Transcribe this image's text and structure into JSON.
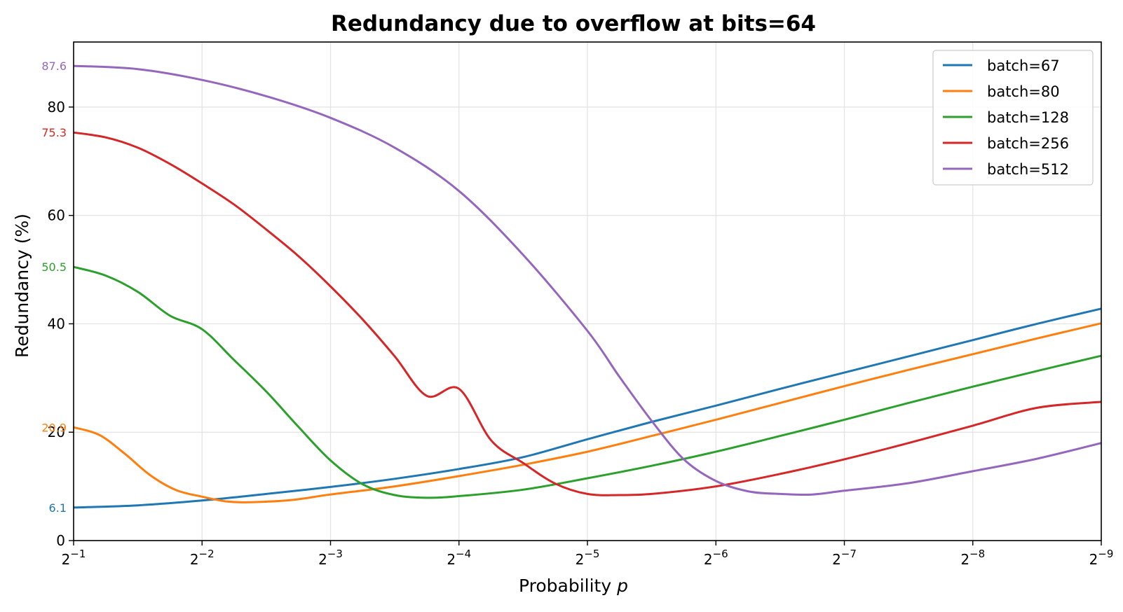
{
  "chart_data": {
    "type": "line",
    "title": "Redundancy due to overflow at bits=64",
    "xlabel": "Probability p",
    "xlabel_text": "Probability ",
    "xlabel_var": "p",
    "ylabel": "Redundancy (%)",
    "x_scale": "log2, reversed",
    "x_range_exponents": [
      -1,
      -9
    ],
    "x_ticks": [
      {
        "exp": -1,
        "label": "−1"
      },
      {
        "exp": -2,
        "label": "−2"
      },
      {
        "exp": -3,
        "label": "−3"
      },
      {
        "exp": -4,
        "label": "−4"
      },
      {
        "exp": -5,
        "label": "−5"
      },
      {
        "exp": -6,
        "label": "−6"
      },
      {
        "exp": -7,
        "label": "−7"
      },
      {
        "exp": -8,
        "label": "−8"
      },
      {
        "exp": -9,
        "label": "−9"
      }
    ],
    "x_tick_base": "2",
    "ylim": [
      0,
      92
    ],
    "y_ticks": [
      0,
      20,
      40,
      60,
      80
    ],
    "grid": true,
    "legend_position": "top-right",
    "series": [
      {
        "name": "batch=67",
        "color": "#1f77b4",
        "start_label": "6.1",
        "points": [
          [
            -1,
            6.1
          ],
          [
            -1.5,
            6.5
          ],
          [
            -2,
            7.4
          ],
          [
            -2.5,
            8.6
          ],
          [
            -3,
            9.9
          ],
          [
            -3.5,
            11.4
          ],
          [
            -4,
            13.2
          ],
          [
            -4.5,
            15.4
          ],
          [
            -5,
            18.7
          ],
          [
            -5.5,
            21.9
          ],
          [
            -6,
            24.9
          ],
          [
            -6.5,
            28.0
          ],
          [
            -7,
            31.0
          ],
          [
            -7.5,
            34.0
          ],
          [
            -8,
            37.0
          ],
          [
            -8.5,
            40.0
          ],
          [
            -9,
            42.8
          ]
        ]
      },
      {
        "name": "batch=80",
        "color": "#ff7f0e",
        "start_label": "20.9",
        "points": [
          [
            -1,
            20.9
          ],
          [
            -1.2,
            19.5
          ],
          [
            -1.4,
            16.0
          ],
          [
            -1.6,
            12.0
          ],
          [
            -1.8,
            9.3
          ],
          [
            -2,
            8.1
          ],
          [
            -2.2,
            7.2
          ],
          [
            -2.4,
            7.1
          ],
          [
            -2.7,
            7.5
          ],
          [
            -3,
            8.5
          ],
          [
            -3.5,
            10.0
          ],
          [
            -4,
            11.9
          ],
          [
            -4.5,
            14.0
          ],
          [
            -5,
            16.4
          ],
          [
            -5.5,
            19.3
          ],
          [
            -6,
            22.3
          ],
          [
            -6.5,
            25.4
          ],
          [
            -7,
            28.5
          ],
          [
            -7.5,
            31.5
          ],
          [
            -8,
            34.4
          ],
          [
            -8.5,
            37.3
          ],
          [
            -9,
            40.1
          ]
        ]
      },
      {
        "name": "batch=128",
        "color": "#2ca02c",
        "start_label": "50.5",
        "points": [
          [
            -1,
            50.5
          ],
          [
            -1.25,
            48.9
          ],
          [
            -1.5,
            45.9
          ],
          [
            -1.75,
            41.5
          ],
          [
            -2,
            39.0
          ],
          [
            -2.25,
            33.3
          ],
          [
            -2.5,
            27.5
          ],
          [
            -2.75,
            21.0
          ],
          [
            -3,
            14.8
          ],
          [
            -3.25,
            10.4
          ],
          [
            -3.5,
            8.4
          ],
          [
            -3.75,
            7.9
          ],
          [
            -4,
            8.2
          ],
          [
            -4.5,
            9.4
          ],
          [
            -5,
            11.5
          ],
          [
            -5.5,
            13.8
          ],
          [
            -6,
            16.4
          ],
          [
            -6.5,
            19.3
          ],
          [
            -7,
            22.3
          ],
          [
            -7.5,
            25.4
          ],
          [
            -8,
            28.4
          ],
          [
            -8.5,
            31.3
          ],
          [
            -9,
            34.1
          ]
        ]
      },
      {
        "name": "batch=256",
        "color": "#d62728",
        "start_label": "75.3",
        "points": [
          [
            -1,
            75.3
          ],
          [
            -1.25,
            74.4
          ],
          [
            -1.5,
            72.5
          ],
          [
            -1.75,
            69.5
          ],
          [
            -2,
            65.9
          ],
          [
            -2.25,
            62.0
          ],
          [
            -2.5,
            57.4
          ],
          [
            -2.75,
            52.5
          ],
          [
            -3,
            46.9
          ],
          [
            -3.25,
            40.8
          ],
          [
            -3.5,
            34.0
          ],
          [
            -3.75,
            26.7
          ],
          [
            -4,
            28.0
          ],
          [
            -4.25,
            18.5
          ],
          [
            -4.5,
            14.3
          ],
          [
            -4.75,
            10.5
          ],
          [
            -5,
            8.6
          ],
          [
            -5.25,
            8.4
          ],
          [
            -5.5,
            8.6
          ],
          [
            -6,
            10.0
          ],
          [
            -6.5,
            12.3
          ],
          [
            -7,
            15.0
          ],
          [
            -7.5,
            18.0
          ],
          [
            -8,
            21.2
          ],
          [
            -8.5,
            24.5
          ],
          [
            -9,
            25.6
          ]
        ]
      },
      {
        "name": "batch=512",
        "color": "#9467bd",
        "start_label": "87.6",
        "points": [
          [
            -1,
            87.6
          ],
          [
            -1.5,
            87.0
          ],
          [
            -2,
            85.0
          ],
          [
            -2.5,
            82.0
          ],
          [
            -3,
            78.0
          ],
          [
            -3.5,
            72.5
          ],
          [
            -4,
            64.5
          ],
          [
            -4.5,
            52.7
          ],
          [
            -5,
            38.7
          ],
          [
            -5.25,
            30.2
          ],
          [
            -5.5,
            22.1
          ],
          [
            -5.75,
            15.0
          ],
          [
            -6,
            11.0
          ],
          [
            -6.25,
            9.1
          ],
          [
            -6.5,
            8.6
          ],
          [
            -6.75,
            8.5
          ],
          [
            -7,
            9.2
          ],
          [
            -7.5,
            10.6
          ],
          [
            -8,
            12.8
          ],
          [
            -8.5,
            15.1
          ],
          [
            -9,
            18.0
          ]
        ]
      }
    ]
  }
}
